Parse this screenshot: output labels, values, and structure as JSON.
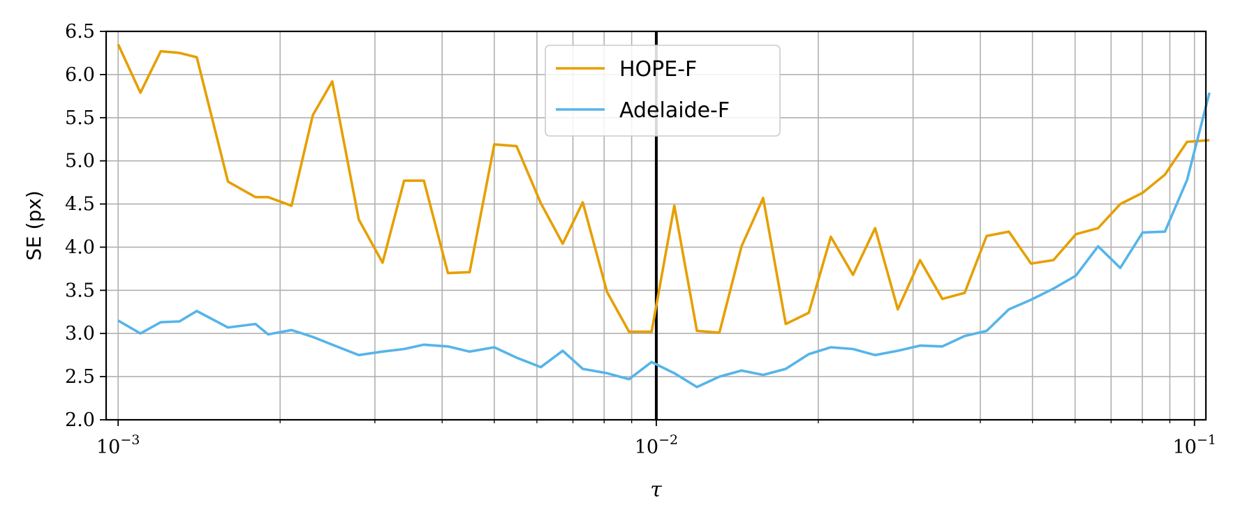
{
  "chart_data": {
    "type": "line",
    "title": "",
    "xlabel": "τ",
    "ylabel": "SE (px)",
    "xscale": "log",
    "xlim": [
      0.00095,
      0.105
    ],
    "ylim": [
      2.0,
      6.5
    ],
    "grid": true,
    "legend_placement": "top-center",
    "vertical_reference_line": 0.01,
    "x_ticks": [
      {
        "value": 0.001,
        "base": "10",
        "exp": "−3"
      },
      {
        "value": 0.01,
        "base": "10",
        "exp": "−2"
      },
      {
        "value": 0.1,
        "base": "10",
        "exp": "−1"
      }
    ],
    "y_ticks": [
      2.0,
      2.5,
      3.0,
      3.5,
      4.0,
      4.5,
      5.0,
      5.5,
      6.0,
      6.5
    ],
    "y_tick_labels": [
      "2.0",
      "2.5",
      "3.0",
      "3.5",
      "4.0",
      "4.5",
      "5.0",
      "5.5",
      "6.0",
      "6.5"
    ],
    "x": [
      0.001,
      0.0011,
      0.0012,
      0.0013,
      0.0014,
      0.0016,
      0.0018,
      0.0019,
      0.0021,
      0.0023,
      0.0025,
      0.0028,
      0.0031,
      0.0034,
      0.0037,
      0.0041,
      0.0045,
      0.005,
      0.0055,
      0.0061,
      0.0067,
      0.0073,
      0.0081,
      0.0089,
      0.0098,
      0.0108,
      0.0119,
      0.0131,
      0.0144,
      0.0158,
      0.0174,
      0.0192,
      0.0211,
      0.0232,
      0.0255,
      0.0281,
      0.0309,
      0.034,
      0.0374,
      0.0411,
      0.0452,
      0.0497,
      0.0547,
      0.0602,
      0.0662,
      0.0728,
      0.0801,
      0.0881,
      0.0969,
      0.1066
    ],
    "series": [
      {
        "name": "HOPE-F",
        "color": "#E69F00",
        "values": [
          6.35,
          5.79,
          6.27,
          6.25,
          6.2,
          4.76,
          4.58,
          4.58,
          4.48,
          5.53,
          5.92,
          4.32,
          3.82,
          4.77,
          4.77,
          3.7,
          3.71,
          5.19,
          5.17,
          4.51,
          4.04,
          4.52,
          3.48,
          3.02,
          3.02,
          4.48,
          3.03,
          3.01,
          4.01,
          4.57,
          3.11,
          3.24,
          4.12,
          3.68,
          4.22,
          3.28,
          3.85,
          3.4,
          3.47,
          4.13,
          4.18,
          3.81,
          3.85,
          4.15,
          4.22,
          4.5,
          4.63,
          4.84,
          5.22,
          5.24
        ]
      },
      {
        "name": "Adelaide-F",
        "color": "#56B4E9",
        "values": [
          3.15,
          3.0,
          3.13,
          3.14,
          3.26,
          3.07,
          3.11,
          2.99,
          3.04,
          2.96,
          2.87,
          2.75,
          2.79,
          2.82,
          2.87,
          2.85,
          2.79,
          2.84,
          2.72,
          2.61,
          2.8,
          2.59,
          2.54,
          2.47,
          2.67,
          2.54,
          2.38,
          2.5,
          2.57,
          2.52,
          2.59,
          2.76,
          2.84,
          2.82,
          2.75,
          2.8,
          2.86,
          2.85,
          2.97,
          3.03,
          3.28,
          3.39,
          3.52,
          3.67,
          4.01,
          3.76,
          4.17,
          4.18,
          4.78,
          5.79
        ]
      }
    ]
  }
}
